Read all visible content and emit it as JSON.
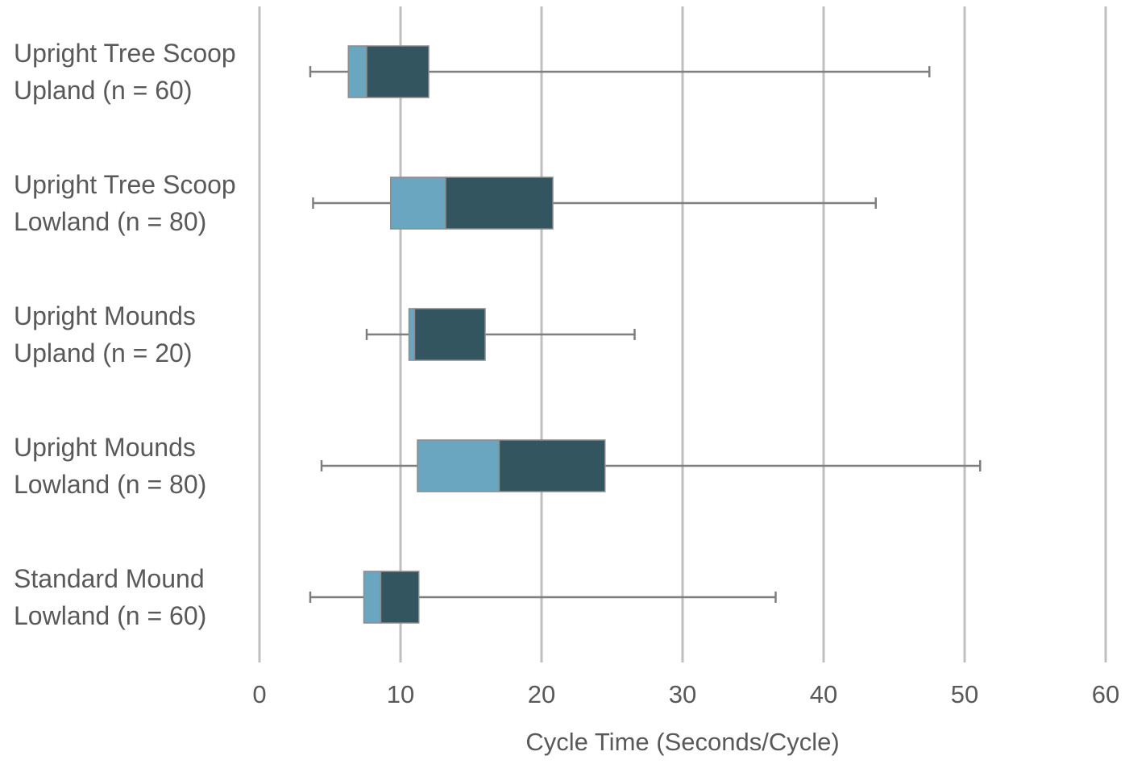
{
  "chart_data": {
    "type": "boxplot",
    "orientation": "horizontal",
    "title": "",
    "xlabel": "Cycle Time (Seconds/Cycle)",
    "ylabel": "",
    "xlim": [
      0,
      60
    ],
    "x_ticks": [
      0,
      10,
      20,
      30,
      40,
      50,
      60
    ],
    "grid": "vertical gridlines",
    "legend": "none",
    "colors": {
      "lower_box": "#6aa6bf",
      "upper_box": "#33555f",
      "whisker": "#7f7f7f",
      "grid": "#bfbfbf",
      "text": "#595959"
    },
    "categories": [
      {
        "label_lines": [
          "Upright Tree Scoop",
          "Upland (n = 60)"
        ],
        "min": 3.6,
        "q1": 6.3,
        "median": 7.6,
        "q3": 12.0,
        "max": 47.5
      },
      {
        "label_lines": [
          "Upright Tree Scoop",
          "Lowland (n = 80)"
        ],
        "min": 3.8,
        "q1": 9.3,
        "median": 13.2,
        "q3": 20.8,
        "max": 43.7
      },
      {
        "label_lines": [
          "Upright Mounds",
          "Upland (n = 20)"
        ],
        "min": 7.6,
        "q1": 10.6,
        "median": 11.0,
        "q3": 16.0,
        "max": 26.6
      },
      {
        "label_lines": [
          "Upright Mounds",
          "Lowland (n = 80)"
        ],
        "min": 4.4,
        "q1": 11.2,
        "median": 17.0,
        "q3": 24.5,
        "max": 51.1
      },
      {
        "label_lines": [
          "Standard Mound",
          "Lowland (n = 60)"
        ],
        "min": 3.6,
        "q1": 7.4,
        "median": 8.6,
        "q3": 11.3,
        "max": 36.6
      }
    ]
  }
}
